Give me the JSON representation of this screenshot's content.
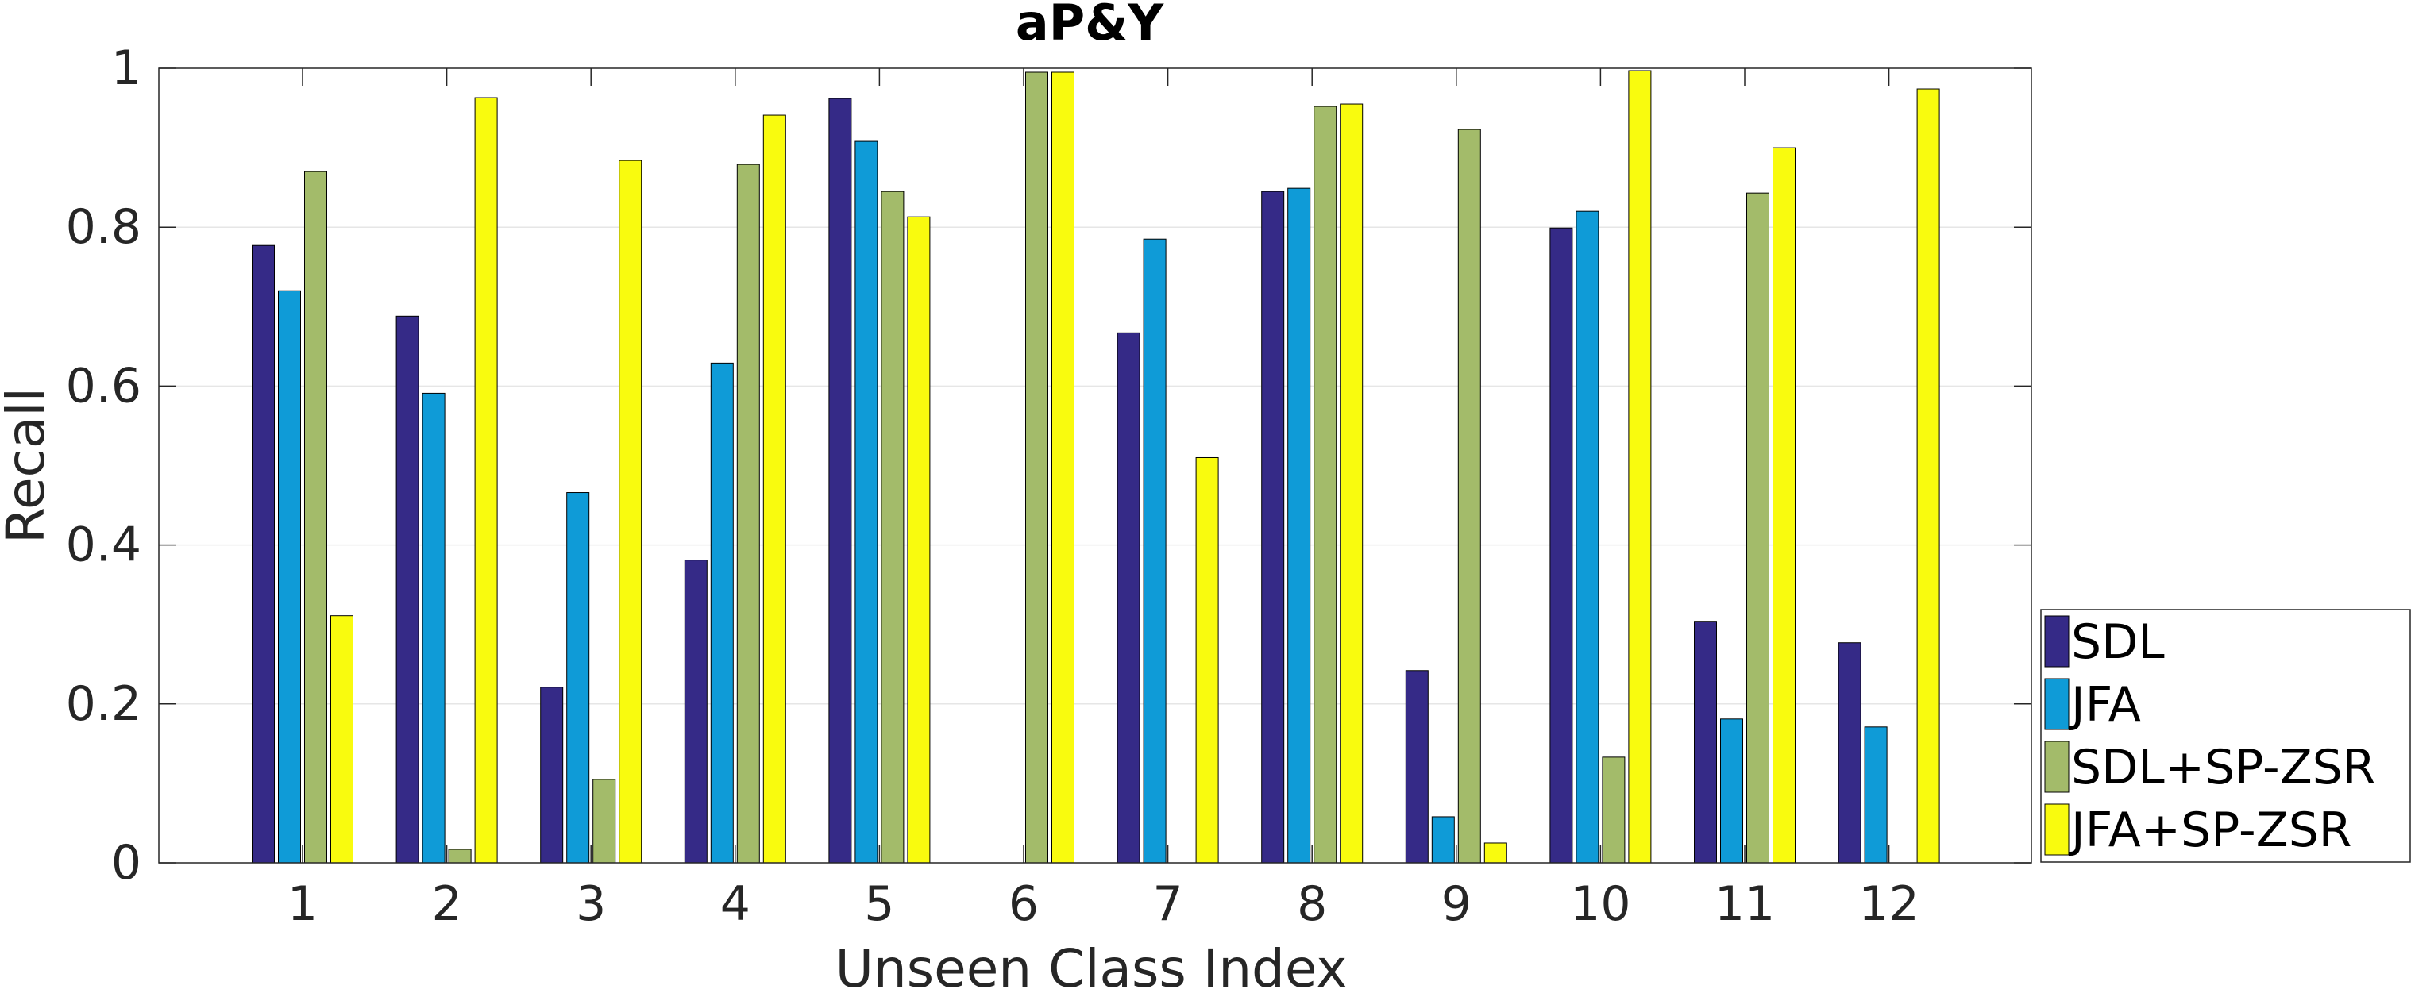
{
  "chart_data": {
    "type": "bar",
    "title": "aP&Y",
    "xlabel": "Unseen Class Index",
    "ylabel": "Recall",
    "ylim": [
      0,
      1
    ],
    "yticks": [
      "0",
      "0.2",
      "0.4",
      "0.6",
      "0.8",
      "1"
    ],
    "categories": [
      "1",
      "2",
      "3",
      "4",
      "5",
      "6",
      "7",
      "8",
      "9",
      "10",
      "11",
      "12"
    ],
    "grid": "horizontal",
    "legend_position": "right",
    "series": [
      {
        "name": "SDL",
        "color": "#352a87",
        "values": [
          0.777,
          0.688,
          0.221,
          0.381,
          0.962,
          0.0,
          0.667,
          0.845,
          0.242,
          0.799,
          0.304,
          0.277
        ]
      },
      {
        "name": "JFA",
        "color": "#0f9bd7",
        "values": [
          0.72,
          0.591,
          0.466,
          0.629,
          0.908,
          0.0,
          0.785,
          0.849,
          0.058,
          0.82,
          0.181,
          0.171
        ]
      },
      {
        "name": "SDL+SP-ZSR",
        "color": "#a3bb6a",
        "values": [
          0.87,
          0.017,
          0.105,
          0.879,
          0.845,
          0.995,
          0.0,
          0.952,
          0.923,
          0.133,
          0.843,
          0.0
        ]
      },
      {
        "name": "JFA+SP-ZSR",
        "color": "#f9fb0e",
        "values": [
          0.311,
          0.963,
          0.884,
          0.941,
          0.813,
          0.995,
          0.51,
          0.955,
          0.025,
          0.997,
          0.9,
          0.974
        ]
      }
    ]
  }
}
